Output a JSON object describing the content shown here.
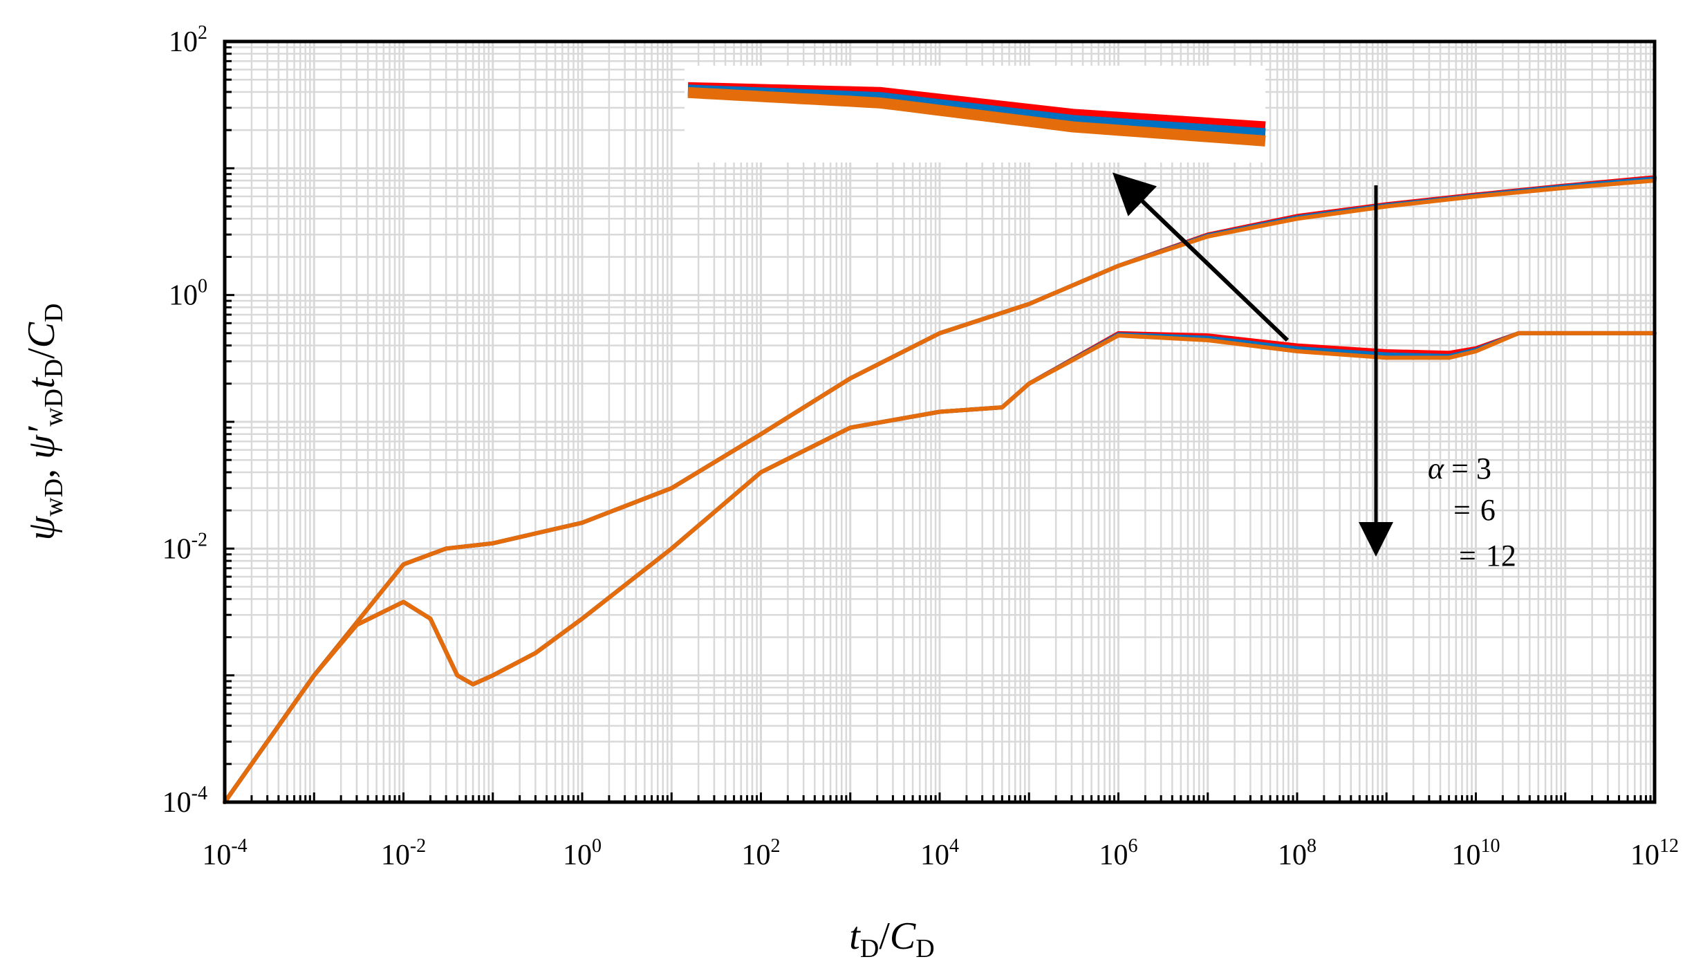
{
  "chart_data": {
    "type": "line",
    "scale": "log-log",
    "title": "",
    "xlabel": "tD/CD",
    "ylabel": "ψwD, ψ′wD tD/CD",
    "xlim": [
      0.0001,
      1000000000000
    ],
    "ylim": [
      0.0001,
      100
    ],
    "grid": true,
    "x_ticks": [
      {
        "value": 0.0001,
        "base": "10",
        "exp": "-4"
      },
      {
        "value": 0.01,
        "base": "10",
        "exp": "-2"
      },
      {
        "value": 1,
        "base": "10",
        "exp": "0"
      },
      {
        "value": 100,
        "base": "10",
        "exp": "2"
      },
      {
        "value": 10000,
        "base": "10",
        "exp": "4"
      },
      {
        "value": 1000000,
        "base": "10",
        "exp": "6"
      },
      {
        "value": 100000000,
        "base": "10",
        "exp": "8"
      },
      {
        "value": 10000000000,
        "base": "10",
        "exp": "10"
      },
      {
        "value": 1000000000000,
        "base": "10",
        "exp": "12"
      }
    ],
    "y_ticks": [
      {
        "value": 0.0001,
        "base": "10",
        "exp": "-4"
      },
      {
        "value": 0.01,
        "base": "10",
        "exp": "-2"
      },
      {
        "value": 1,
        "base": "10",
        "exp": "0"
      },
      {
        "value": 100,
        "base": "10",
        "exp": "2"
      }
    ],
    "legend": {
      "title": "α",
      "entries": [
        {
          "prefix": "α =",
          "value": "3",
          "color": "#FF0000"
        },
        {
          "prefix": "=",
          "value": "6",
          "color": "#0070C0"
        },
        {
          "prefix": "=",
          "value": "12",
          "color": "#E46C0A"
        }
      ]
    },
    "series": [
      {
        "name": "α = 3 pressure ψwD",
        "color": "#FF0000",
        "x": [
          0.0001,
          0.001,
          0.01,
          0.03,
          0.1,
          1,
          10,
          100,
          1000,
          10000,
          100000,
          1000000,
          10000000,
          100000000,
          1000000000,
          10000000000,
          100000000000,
          1000000000000
        ],
        "y": [
          0.0001,
          0.001,
          0.0075,
          0.01,
          0.011,
          0.016,
          0.03,
          0.08,
          0.22,
          0.5,
          0.85,
          1.7,
          3,
          4.2,
          5.2,
          6.2,
          7.3,
          8.5
        ]
      },
      {
        "name": "α = 6 pressure ψwD",
        "color": "#0070C0",
        "x": [
          0.0001,
          0.001,
          0.01,
          0.03,
          0.1,
          1,
          10,
          100,
          1000,
          10000,
          100000,
          1000000,
          10000000,
          100000000,
          1000000000,
          10000000000,
          100000000000,
          1000000000000
        ],
        "y": [
          0.0001,
          0.001,
          0.0075,
          0.01,
          0.011,
          0.016,
          0.03,
          0.08,
          0.22,
          0.5,
          0.85,
          1.7,
          2.95,
          4.1,
          5.1,
          6.1,
          7.2,
          8.3
        ]
      },
      {
        "name": "α = 12 pressure ψwD",
        "color": "#E46C0A",
        "x": [
          0.0001,
          0.001,
          0.01,
          0.03,
          0.1,
          1,
          10,
          100,
          1000,
          10000,
          100000,
          1000000,
          10000000,
          100000000,
          1000000000,
          10000000000,
          100000000000,
          1000000000000
        ],
        "y": [
          0.0001,
          0.001,
          0.0075,
          0.01,
          0.011,
          0.016,
          0.03,
          0.08,
          0.22,
          0.5,
          0.85,
          1.7,
          2.9,
          4,
          5,
          6,
          7,
          8
        ]
      },
      {
        "name": "α = 3 derivative ψ′wD tD/CD",
        "color": "#FF0000",
        "x": [
          0.0001,
          0.001,
          0.003,
          0.01,
          0.02,
          0.04,
          0.06,
          0.1,
          0.3,
          1,
          10,
          100,
          1000,
          10000,
          50000,
          100000,
          1000000,
          10000000,
          100000000,
          1000000000,
          5000000000,
          10000000000,
          30000000000,
          1000000000000
        ],
        "y": [
          0.0001,
          0.001,
          0.0025,
          0.0038,
          0.0028,
          0.001,
          0.00085,
          0.001,
          0.0015,
          0.0028,
          0.01,
          0.04,
          0.09,
          0.12,
          0.13,
          0.2,
          0.5,
          0.48,
          0.4,
          0.36,
          0.35,
          0.38,
          0.5,
          0.5
        ]
      },
      {
        "name": "α = 6 derivative ψ′wD tD/CD",
        "color": "#0070C0",
        "x": [
          0.0001,
          0.001,
          0.003,
          0.01,
          0.02,
          0.04,
          0.06,
          0.1,
          0.3,
          1,
          10,
          100,
          1000,
          10000,
          50000,
          100000,
          1000000,
          10000000,
          100000000,
          1000000000,
          5000000000,
          10000000000,
          30000000000,
          1000000000000
        ],
        "y": [
          0.0001,
          0.001,
          0.0025,
          0.0038,
          0.0028,
          0.001,
          0.00085,
          0.001,
          0.0015,
          0.0028,
          0.01,
          0.04,
          0.09,
          0.12,
          0.13,
          0.2,
          0.49,
          0.46,
          0.38,
          0.34,
          0.33,
          0.37,
          0.5,
          0.5
        ]
      },
      {
        "name": "α = 12 derivative ψ′wD tD/CD",
        "color": "#E46C0A",
        "x": [
          0.0001,
          0.001,
          0.003,
          0.01,
          0.02,
          0.04,
          0.06,
          0.1,
          0.3,
          1,
          10,
          100,
          1000,
          10000,
          50000,
          100000,
          1000000,
          10000000,
          100000000,
          1000000000,
          5000000000,
          10000000000,
          30000000000,
          1000000000000
        ],
        "y": [
          0.0001,
          0.001,
          0.0025,
          0.0038,
          0.0028,
          0.001,
          0.00085,
          0.001,
          0.0015,
          0.0028,
          0.01,
          0.04,
          0.09,
          0.12,
          0.13,
          0.2,
          0.48,
          0.44,
          0.36,
          0.32,
          0.32,
          0.36,
          0.5,
          0.5
        ]
      }
    ],
    "annotations": [
      {
        "type": "zoom-inset",
        "description": "magnified view of derivative curves near tD/CD 1e8"
      },
      {
        "type": "arrow",
        "meaning": "increasing α"
      }
    ]
  }
}
